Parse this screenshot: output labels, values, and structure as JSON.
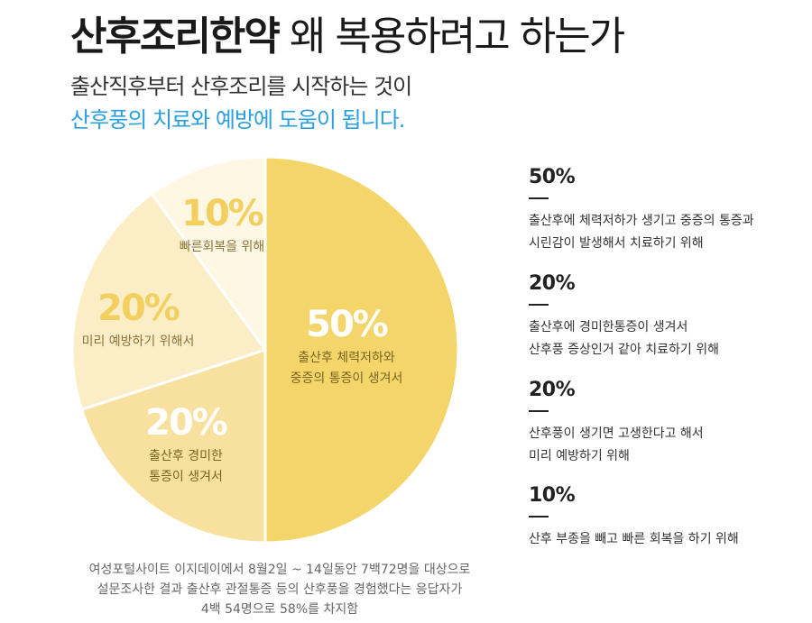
{
  "header": {
    "title_bold": "산후조리한약",
    "title_rest": "왜 복용하려고 하는가",
    "subtitle_line1": "출산직후부터 산후조리를 시작하는 것이",
    "subtitle_line2": "산후풍의 치료와 예방에 도움이 됩니다."
  },
  "chart_data": {
    "type": "pie",
    "slices": [
      {
        "value": 50,
        "label": "50%",
        "desc": [
          "출산후 체력저하와",
          "중증의 통증이 생겨서"
        ],
        "color": "#f4d56a",
        "text_color": "#ffffff",
        "desc_color": "#7a6424"
      },
      {
        "value": 20,
        "label": "20%",
        "desc": [
          "출산후 경미한",
          "통증이 생겨서"
        ],
        "color": "#f8e19e",
        "text_color": "#ffffff",
        "desc_color": "#7a6424"
      },
      {
        "value": 20,
        "label": "20%",
        "desc": [
          "미리 예방하기 위해서"
        ],
        "color": "#fbeec6",
        "text_color": "#f2cf5e",
        "desc_color": "#8a7438"
      },
      {
        "value": 10,
        "label": "10%",
        "desc": [
          "빠른회복을 위해"
        ],
        "color": "#fdf7e4",
        "text_color": "#f2cf5e",
        "desc_color": "#8a7438"
      }
    ]
  },
  "legend": [
    {
      "pct": "50%",
      "lines": [
        "출산후에 체력저하가 생기고 중증의 통증과",
        "시린감이 발생해서 치료하기 위해"
      ]
    },
    {
      "pct": "20%",
      "lines": [
        "출산후에 경미한통증이 생겨서",
        "산후풍 증상인거 같아 치료하기 위해"
      ]
    },
    {
      "pct": "20%",
      "lines": [
        "산후풍이 생기면 고생한다고 해서",
        "미리 예방하기 위해"
      ]
    },
    {
      "pct": "10%",
      "lines": [
        "산후 부종을 빼고 빠른 회복을 하기 위해"
      ]
    }
  ],
  "footnote": [
    "여성포털사이트 이지데이에서 8월2일 ~ 14일동안 7백72명을 대상으로",
    "설문조사한 결과 출산후 관절통증 등의 산후풍을 경험했다는 응답자가",
    "4백 54명으로 58%를 차지함"
  ]
}
